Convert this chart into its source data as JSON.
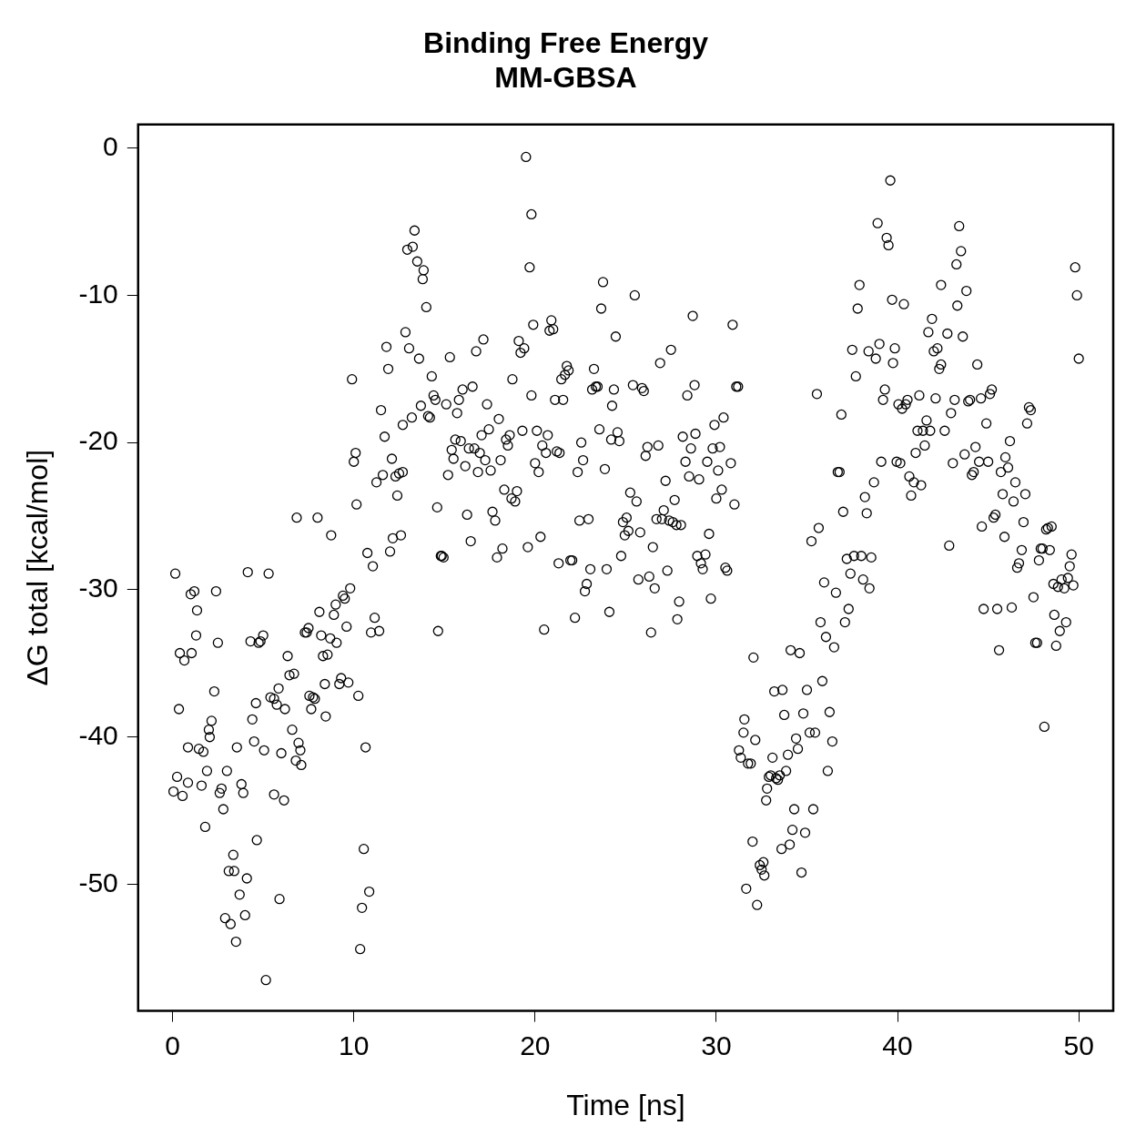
{
  "chart_data": {
    "type": "scatter",
    "title": "Binding Free Energy",
    "subtitle": "MM-GBSA",
    "xlabel": "Time [ns]",
    "ylabel": "ΔG total [kcal/mol]",
    "xlim": [
      -1.9,
      51.9
    ],
    "xticks": [
      0,
      10,
      20,
      30,
      40,
      50
    ],
    "ylim": [
      -58.6,
      1.6
    ],
    "yticks": [
      0,
      -10,
      -20,
      -30,
      -40,
      -50
    ],
    "grid": false,
    "legend": false,
    "marker": "circle",
    "series": [
      {
        "color": "#000000",
        "x": [
          0.15,
          0.05,
          0.25,
          0.4,
          0.35,
          0.55,
          0.65,
          0.85,
          0.85,
          1.0,
          1.2,
          1.05,
          1.35,
          1.3,
          1.45,
          1.6,
          1.7,
          1.8,
          1.9,
          2.0,
          2.05,
          2.15,
          2.3,
          2.4,
          2.5,
          2.6,
          2.7,
          2.8,
          2.9,
          3.0,
          3.1,
          3.2,
          3.35,
          3.4,
          3.5,
          3.55,
          3.7,
          3.8,
          3.9,
          4.0,
          4.1,
          4.15,
          4.3,
          4.4,
          4.5,
          4.6,
          4.65,
          4.75,
          4.85,
          5.0,
          5.05,
          5.15,
          5.3,
          5.4,
          5.6,
          5.6,
          5.75,
          5.85,
          5.9,
          6.0,
          6.15,
          6.2,
          6.35,
          6.45,
          6.6,
          6.7,
          6.8,
          6.85,
          6.95,
          7.05,
          7.1,
          7.3,
          7.4,
          7.5,
          7.55,
          7.65,
          7.75,
          7.85,
          8.0,
          8.1,
          8.2,
          8.3,
          8.4,
          8.45,
          8.55,
          8.7,
          8.75,
          8.9,
          9.0,
          9.05,
          9.2,
          9.3,
          9.4,
          9.5,
          9.6,
          9.7,
          9.8,
          9.9,
          10.0,
          10.1,
          10.15,
          10.25,
          10.35,
          10.45,
          10.55,
          10.65,
          10.75,
          10.85,
          10.95,
          11.05,
          11.15,
          11.25,
          11.4,
          11.5,
          11.6,
          11.7,
          11.8,
          11.9,
          12.0,
          12.1,
          12.15,
          12.3,
          12.4,
          12.5,
          12.6,
          12.7,
          12.7,
          12.85,
          12.95,
          13.05,
          13.2,
          13.25,
          13.35,
          13.5,
          13.6,
          13.7,
          13.8,
          13.85,
          14.0,
          14.1,
          14.2,
          14.3,
          14.4,
          14.5,
          14.6,
          14.65,
          14.8,
          14.85,
          14.95,
          15.1,
          15.2,
          15.3,
          15.4,
          15.5,
          15.6,
          15.7,
          15.8,
          15.9,
          16.0,
          16.15,
          16.25,
          16.35,
          16.45,
          16.55,
          16.65,
          16.75,
          16.85,
          16.95,
          17.05,
          17.15,
          17.25,
          17.35,
          17.45,
          17.55,
          17.65,
          17.8,
          17.9,
          18.0,
          18.1,
          18.2,
          18.3,
          18.4,
          18.5,
          18.6,
          18.7,
          18.75,
          18.9,
          19.0,
          19.1,
          19.2,
          19.3,
          19.4,
          19.5,
          19.6,
          19.7,
          19.8,
          19.8,
          19.9,
          20.0,
          20.1,
          20.2,
          20.3,
          20.4,
          20.5,
          20.6,
          20.7,
          20.8,
          20.9,
          21.0,
          21.1,
          21.2,
          21.3,
          21.35,
          21.45,
          21.55,
          21.65,
          21.75,
          21.85,
          21.95,
          22.05,
          22.2,
          22.35,
          22.45,
          22.55,
          22.65,
          22.75,
          22.85,
          22.95,
          23.05,
          23.15,
          23.25,
          23.35,
          23.45,
          23.55,
          23.65,
          23.75,
          23.85,
          23.95,
          24.1,
          24.2,
          24.25,
          24.35,
          24.45,
          24.55,
          24.65,
          24.75,
          24.85,
          24.95,
          25.05,
          25.15,
          25.25,
          25.4,
          25.5,
          25.6,
          25.7,
          25.8,
          25.9,
          26.0,
          26.1,
          26.2,
          26.3,
          26.4,
          26.5,
          26.6,
          26.7,
          26.8,
          26.9,
          27.0,
          27.1,
          27.2,
          27.3,
          27.4,
          27.5,
          27.6,
          27.7,
          27.8,
          27.85,
          27.95,
          28.05,
          28.15,
          28.3,
          28.4,
          28.5,
          28.6,
          28.7,
          28.8,
          28.85,
          28.95,
          29.05,
          29.15,
          29.25,
          29.4,
          29.5,
          29.6,
          29.7,
          29.8,
          29.9,
          30.0,
          30.1,
          30.2,
          30.3,
          30.4,
          30.5,
          30.6,
          30.8,
          30.9,
          31.0,
          31.1,
          31.2,
          31.25,
          31.35,
          31.5,
          31.55,
          31.65,
          31.75,
          31.9,
          32.0,
          32.05,
          32.15,
          32.25,
          32.4,
          32.5,
          32.6,
          32.65,
          32.75,
          32.8,
          32.9,
          33.0,
          33.1,
          33.2,
          33.3,
          33.4,
          33.5,
          33.6,
          33.65,
          33.75,
          33.85,
          33.95,
          34.05,
          34.1,
          34.2,
          34.3,
          34.4,
          34.5,
          34.6,
          34.7,
          34.8,
          34.9,
          35.0,
          35.15,
          35.25,
          35.35,
          35.45,
          35.55,
          35.65,
          35.75,
          35.85,
          35.95,
          36.05,
          36.15,
          36.25,
          36.4,
          36.5,
          36.6,
          36.7,
          36.8,
          36.9,
          37.0,
          37.1,
          37.2,
          37.3,
          37.4,
          37.5,
          37.6,
          37.7,
          37.8,
          37.9,
          38.0,
          38.1,
          38.2,
          38.3,
          38.4,
          38.45,
          38.55,
          38.7,
          38.8,
          38.9,
          39.0,
          39.1,
          39.2,
          39.3,
          39.4,
          39.5,
          39.6,
          39.7,
          39.75,
          39.85,
          39.95,
          40.05,
          40.15,
          40.25,
          40.35,
          40.45,
          40.55,
          40.65,
          40.75,
          40.9,
          41.0,
          41.1,
          41.2,
          41.3,
          41.4,
          41.5,
          41.6,
          41.7,
          41.8,
          41.9,
          42.0,
          42.1,
          42.2,
          42.3,
          42.4,
          42.4,
          42.6,
          42.75,
          42.85,
          42.95,
          43.05,
          43.15,
          43.25,
          43.3,
          43.4,
          43.5,
          43.6,
          43.7,
          43.8,
          43.9,
          44.0,
          44.1,
          44.2,
          44.3,
          44.4,
          44.5,
          44.6,
          44.65,
          44.75,
          44.9,
          45.0,
          45.1,
          45.2,
          45.3,
          45.4,
          45.5,
          45.6,
          45.7,
          45.8,
          45.9,
          45.95,
          46.1,
          46.2,
          46.3,
          46.4,
          46.5,
          46.6,
          46.7,
          46.85,
          46.95,
          47.05,
          47.15,
          47.25,
          47.35,
          47.5,
          47.6,
          47.7,
          47.8,
          47.9,
          48.0,
          48.1,
          48.2,
          48.3,
          48.4,
          48.5,
          48.6,
          48.65,
          48.75,
          48.85,
          48.95,
          49.05,
          49.2,
          49.3,
          49.4,
          49.5,
          49.6,
          49.7,
          49.8,
          49.9,
          50.0
        ],
        "values": [
          -28.9,
          -43.7,
          -42.7,
          -34.3,
          -38.1,
          -44.0,
          -34.8,
          -43.1,
          -40.7,
          -30.3,
          -30.1,
          -34.3,
          -31.4,
          -33.1,
          -40.8,
          -43.3,
          -41.0,
          -46.1,
          -42.3,
          -39.5,
          -40.0,
          -38.9,
          -36.9,
          -30.1,
          -33.6,
          -43.8,
          -43.5,
          -44.9,
          -52.3,
          -42.3,
          -49.1,
          -52.7,
          -48.0,
          -49.1,
          -53.9,
          -40.7,
          -50.7,
          -43.2,
          -43.8,
          -52.1,
          -49.6,
          -28.8,
          -33.5,
          -38.8,
          -40.3,
          -37.7,
          -47.0,
          -33.6,
          -33.5,
          -33.1,
          -40.9,
          -56.5,
          -28.9,
          -37.3,
          -37.4,
          -43.9,
          -37.8,
          -36.7,
          -51.0,
          -41.1,
          -44.3,
          -38.1,
          -34.5,
          -35.8,
          -39.5,
          -35.7,
          -41.6,
          -25.1,
          -40.4,
          -40.9,
          -41.9,
          -32.9,
          -32.9,
          -32.6,
          -37.2,
          -38.1,
          -37.3,
          -37.4,
          -25.1,
          -31.5,
          -33.1,
          -34.5,
          -36.4,
          -38.6,
          -34.4,
          -33.3,
          -26.3,
          -31.7,
          -31.0,
          -33.6,
          -36.4,
          -36.0,
          -30.4,
          -30.6,
          -32.5,
          -36.3,
          -29.9,
          -15.7,
          -21.3,
          -20.7,
          -24.2,
          -37.2,
          -54.4,
          -51.6,
          -47.6,
          -40.7,
          -27.5,
          -50.5,
          -32.9,
          -28.4,
          -31.9,
          -22.7,
          -32.8,
          -17.8,
          -22.2,
          -19.6,
          -13.5,
          -15.0,
          -27.4,
          -21.1,
          -26.5,
          -22.3,
          -23.6,
          -22.1,
          -26.3,
          -22.0,
          -18.8,
          -12.5,
          -6.9,
          -13.6,
          -18.3,
          -6.7,
          -5.6,
          -7.7,
          -14.3,
          -17.5,
          -8.9,
          -8.3,
          -10.8,
          -18.2,
          -18.3,
          -15.5,
          -16.8,
          -17.1,
          -24.4,
          -32.8,
          -27.7,
          -27.7,
          -27.8,
          -17.4,
          -22.2,
          -14.2,
          -20.5,
          -21.1,
          -19.8,
          -18.0,
          -17.1,
          -19.9,
          -16.4,
          -21.6,
          -24.9,
          -20.4,
          -26.7,
          -16.2,
          -20.4,
          -13.8,
          -22.0,
          -20.7,
          -19.5,
          -13.0,
          -21.2,
          -17.4,
          -19.1,
          -21.9,
          -24.7,
          -25.3,
          -27.8,
          -18.4,
          -21.2,
          -27.2,
          -23.2,
          -19.8,
          -20.2,
          -19.5,
          -23.8,
          -15.7,
          -24.0,
          -23.3,
          -13.1,
          -13.9,
          -19.2,
          -13.6,
          -0.6,
          -27.1,
          -8.1,
          -16.8,
          -4.5,
          -12.0,
          -21.4,
          -19.2,
          -22.0,
          -26.4,
          -20.2,
          -32.7,
          -20.7,
          -19.5,
          -12.4,
          -11.7,
          -12.3,
          -17.1,
          -20.6,
          -28.2,
          -20.7,
          -15.7,
          -17.1,
          -15.4,
          -14.8,
          -15.1,
          -28.0,
          -28.0,
          -31.9,
          -22.0,
          -25.3,
          -20.0,
          -21.2,
          -30.1,
          -29.6,
          -25.2,
          -28.6,
          -16.4,
          -15.0,
          -16.2,
          -16.2,
          -19.1,
          -10.9,
          -9.1,
          -21.8,
          -28.6,
          -31.5,
          -19.8,
          -17.5,
          -16.4,
          -12.8,
          -19.3,
          -19.9,
          -27.7,
          -25.4,
          -26.3,
          -25.1,
          -26.0,
          -23.4,
          -16.1,
          -10.0,
          -24.0,
          -29.3,
          -26.1,
          -16.3,
          -16.5,
          -20.9,
          -20.3,
          -29.1,
          -32.9,
          -27.1,
          -29.9,
          -25.2,
          -20.2,
          -14.6,
          -25.2,
          -24.6,
          -22.6,
          -28.7,
          -25.3,
          -13.7,
          -25.4,
          -23.9,
          -25.6,
          -32.0,
          -30.8,
          -25.6,
          -19.6,
          -21.3,
          -16.8,
          -22.3,
          -20.4,
          -11.4,
          -16.1,
          -19.4,
          -27.7,
          -22.5,
          -28.2,
          -28.6,
          -27.6,
          -21.3,
          -26.2,
          -30.6,
          -20.4,
          -18.8,
          -23.8,
          -21.9,
          -20.3,
          -23.2,
          -18.3,
          -28.5,
          -28.7,
          -21.4,
          -12.0,
          -24.2,
          -16.2,
          -16.2,
          -40.9,
          -41.4,
          -39.7,
          -38.8,
          -50.3,
          -41.8,
          -41.8,
          -47.1,
          -34.6,
          -40.2,
          -51.4,
          -48.7,
          -49.0,
          -48.5,
          -49.4,
          -44.3,
          -43.5,
          -42.7,
          -42.6,
          -41.4,
          -36.9,
          -42.8,
          -42.9,
          -42.6,
          -47.6,
          -36.8,
          -38.5,
          -42.3,
          -41.2,
          -47.3,
          -34.1,
          -46.3,
          -44.9,
          -40.1,
          -40.8,
          -34.3,
          -49.2,
          -38.4,
          -46.5,
          -36.8,
          -39.7,
          -26.7,
          -44.9,
          -39.7,
          -16.7,
          -25.8,
          -32.2,
          -36.2,
          -29.5,
          -33.2,
          -42.3,
          -38.3,
          -40.3,
          -33.9,
          -30.2,
          -22.0,
          -22.0,
          -18.1,
          -24.7,
          -32.2,
          -27.9,
          -31.3,
          -28.9,
          -13.7,
          -27.7,
          -15.5,
          -10.9,
          -9.3,
          -27.7,
          -29.3,
          -23.7,
          -24.8,
          -13.8,
          -29.9,
          -27.8,
          -22.7,
          -14.3,
          -5.1,
          -13.3,
          -21.3,
          -17.1,
          -16.4,
          -6.1,
          -6.6,
          -2.2,
          -10.3,
          -14.6,
          -13.6,
          -21.3,
          -17.4,
          -21.4,
          -17.7,
          -10.6,
          -17.4,
          -17.1,
          -22.3,
          -23.6,
          -22.7,
          -20.7,
          -19.2,
          -16.8,
          -22.9,
          -19.2,
          -20.2,
          -18.5,
          -12.5,
          -19.2,
          -11.6,
          -13.8,
          -17.0,
          -13.6,
          -15.0,
          -14.7,
          -9.3,
          -19.2,
          -12.6,
          -27.0,
          -18.0,
          -21.4,
          -17.1,
          -7.9,
          -10.7,
          -5.3,
          -7.0,
          -12.8,
          -20.8,
          -9.7,
          -17.2,
          -17.1,
          -22.2,
          -22.0,
          -20.3,
          -14.7,
          -21.3,
          -17.0,
          -25.7,
          -31.3,
          -18.7,
          -21.3,
          -16.7,
          -16.4,
          -25.1,
          -24.9,
          -31.3,
          -34.1,
          -22.0,
          -23.5,
          -26.4,
          -21.0,
          -21.7,
          -19.9,
          -31.2,
          -24.0,
          -22.7,
          -28.5,
          -28.2,
          -27.3,
          -25.4,
          -23.5,
          -18.7,
          -17.6,
          -17.8,
          -30.5,
          -33.6,
          -33.6,
          -28.0,
          -27.2,
          -27.2,
          -39.3,
          -25.9,
          -25.8,
          -27.3,
          -25.7,
          -29.6,
          -31.7,
          -33.8,
          -29.8,
          -32.8,
          -29.3,
          -29.9,
          -32.2,
          -29.2,
          -28.4,
          -27.6,
          -29.7,
          -8.1,
          -10.0,
          -14.3
        ]
      }
    ]
  }
}
